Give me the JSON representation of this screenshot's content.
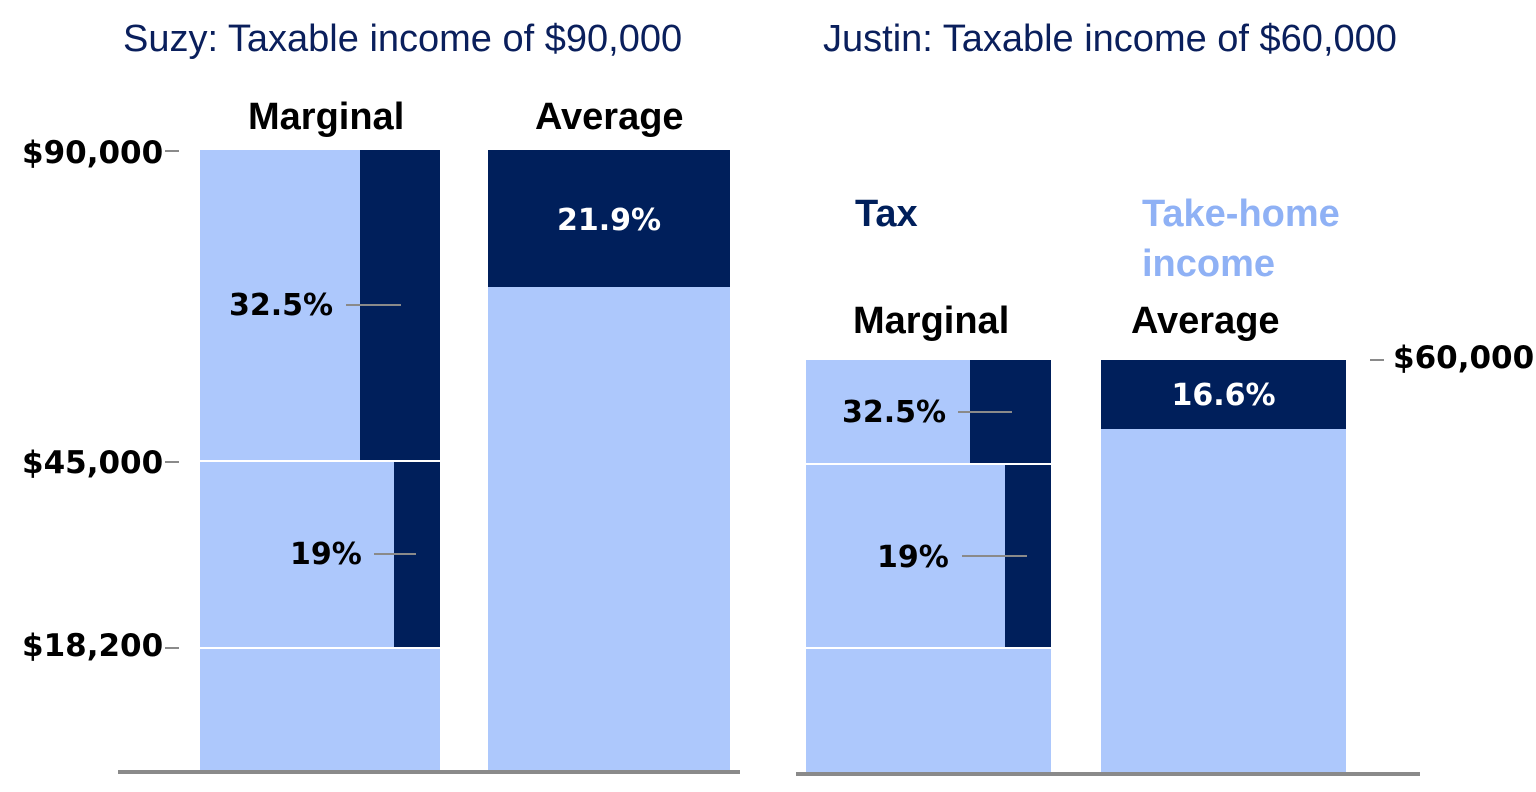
{
  "colors": {
    "tax": "#001f5b",
    "take_home": "#adc8fc",
    "title_text": "#0a1f5c",
    "legend_take_home": "#8fb1f5",
    "baseline": "#8a8a8a"
  },
  "suzy": {
    "title": "Suzy: Taxable income of $90,000",
    "marginal_label": "Marginal",
    "average_label": "Average",
    "axis_ticks": [
      "$90,000",
      "$45,000",
      "$18,200"
    ],
    "marginal_rates": [
      "32.5%",
      "19%"
    ],
    "average_rate": "21.9%"
  },
  "justin": {
    "title": "Justin: Taxable income of $60,000",
    "marginal_label": "Marginal",
    "average_label": "Average",
    "axis_tick": "$60,000",
    "marginal_rates": [
      "32.5%",
      "19%"
    ],
    "average_rate": "16.6%"
  },
  "legend": {
    "tax": "Tax",
    "take_home": "Take-home income"
  }
}
